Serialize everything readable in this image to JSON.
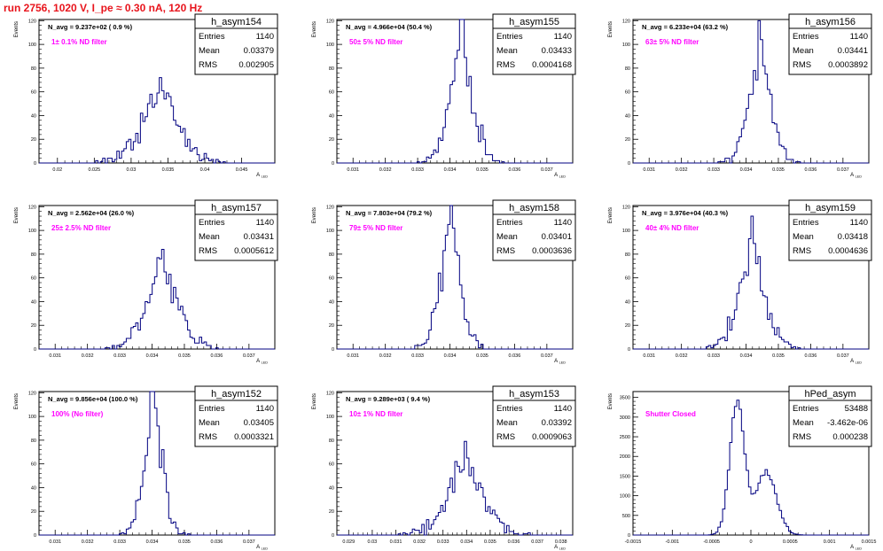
{
  "page": {
    "title": "run 2756,  1020 V, I_pe ≈ 0.30 nA, 120 Hz"
  },
  "style": {
    "hist_color": "#000080",
    "label_color": "#ff00ff",
    "title_color": "#e8141c"
  },
  "chart_data": [
    {
      "type": "bar",
      "name": "h_asym154",
      "ylabel": "Events",
      "xlabel": "A_LED",
      "navg": "N_avg = 9.237e+02 ( 0.9 %)",
      "filter": "1± 0.1% ND filter",
      "stats": {
        "entries": "1140",
        "mean": "0.03379",
        "rms": "0.002905"
      },
      "xlim": [
        0.0175,
        0.0495
      ],
      "ylim": [
        0,
        121
      ],
      "xticks": [
        0.02,
        0.025,
        0.03,
        0.035,
        0.04,
        0.045
      ],
      "xtick_labels": [
        "0.02",
        "0.025",
        "0.03",
        "0.035",
        "0.04",
        "0.045"
      ],
      "yticks": [
        0,
        20,
        40,
        60,
        80,
        100,
        120
      ],
      "hist": {
        "mean": 0.03379,
        "rms": 0.002905,
        "entries": 1140,
        "bins": 100,
        "seed": 154
      }
    },
    {
      "type": "bar",
      "name": "h_asym155",
      "ylabel": "Events",
      "xlabel": "A_LED",
      "navg": "N_avg = 4.966e+04 (50.4 %)",
      "filter": "50± 5% ND filter",
      "stats": {
        "entries": "1140",
        "mean": "0.03433",
        "rms": "0.0004168"
      },
      "xlim": [
        0.0305,
        0.0378
      ],
      "ylim": [
        0,
        121
      ],
      "xticks": [
        0.031,
        0.032,
        0.033,
        0.034,
        0.035,
        0.036,
        0.037
      ],
      "xtick_labels": [
        "0.031",
        "0.032",
        "0.033",
        "0.034",
        "0.035",
        "0.036",
        "0.037"
      ],
      "yticks": [
        0,
        20,
        40,
        60,
        80,
        100,
        120
      ],
      "hist": {
        "mean": 0.03433,
        "rms": 0.0004168,
        "entries": 1140,
        "bins": 100,
        "seed": 155
      }
    },
    {
      "type": "bar",
      "name": "h_asym156",
      "ylabel": "Events",
      "xlabel": "A_LED",
      "navg": "N_avg = 6.233e+04 (63.2 %)",
      "filter": "63± 5% ND filter",
      "stats": {
        "entries": "1140",
        "mean": "0.03441",
        "rms": "0.0003892"
      },
      "xlim": [
        0.0305,
        0.0378
      ],
      "ylim": [
        0,
        121
      ],
      "xticks": [
        0.031,
        0.032,
        0.033,
        0.034,
        0.035,
        0.036,
        0.037
      ],
      "xtick_labels": [
        "0.031",
        "0.032",
        "0.033",
        "0.034",
        "0.035",
        "0.036",
        "0.037"
      ],
      "yticks": [
        0,
        20,
        40,
        60,
        80,
        100,
        120
      ],
      "hist": {
        "mean": 0.03441,
        "rms": 0.0003892,
        "entries": 1140,
        "bins": 100,
        "seed": 156
      }
    },
    {
      "type": "bar",
      "name": "h_asym157",
      "ylabel": "Events",
      "xlabel": "A_LED",
      "navg": "N_avg = 2.562e+04 (26.0 %)",
      "filter": "25± 2.5% ND filter",
      "stats": {
        "entries": "1140",
        "mean": "0.03431",
        "rms": "0.0005612"
      },
      "xlim": [
        0.0305,
        0.0378
      ],
      "ylim": [
        0,
        121
      ],
      "xticks": [
        0.031,
        0.032,
        0.033,
        0.034,
        0.035,
        0.036,
        0.037
      ],
      "xtick_labels": [
        "0.031",
        "0.032",
        "0.033",
        "0.034",
        "0.035",
        "0.036",
        "0.037"
      ],
      "yticks": [
        0,
        20,
        40,
        60,
        80,
        100,
        120
      ],
      "hist": {
        "mean": 0.03431,
        "rms": 0.0005612,
        "entries": 1140,
        "bins": 100,
        "seed": 157
      }
    },
    {
      "type": "bar",
      "name": "h_asym158",
      "ylabel": "Events",
      "xlabel": "A_LED",
      "navg": "N_avg = 7.803e+04 (79.2 %)",
      "filter": "79± 5% ND filter",
      "stats": {
        "entries": "1140",
        "mean": "0.03401",
        "rms": "0.0003636"
      },
      "xlim": [
        0.0305,
        0.0378
      ],
      "ylim": [
        0,
        121
      ],
      "xticks": [
        0.031,
        0.032,
        0.033,
        0.034,
        0.035,
        0.036,
        0.037
      ],
      "xtick_labels": [
        "0.031",
        "0.032",
        "0.033",
        "0.034",
        "0.035",
        "0.036",
        "0.037"
      ],
      "yticks": [
        0,
        20,
        40,
        60,
        80,
        100,
        120
      ],
      "hist": {
        "mean": 0.03401,
        "rms": 0.0003636,
        "entries": 1140,
        "bins": 100,
        "seed": 158
      }
    },
    {
      "type": "bar",
      "name": "h_asym159",
      "ylabel": "Events",
      "xlabel": "A_LED",
      "navg": "N_avg = 3.976e+04 (40.3 %)",
      "filter": "40± 4% ND filter",
      "stats": {
        "entries": "1140",
        "mean": "0.03418",
        "rms": "0.0004636"
      },
      "xlim": [
        0.0305,
        0.0378
      ],
      "ylim": [
        0,
        121
      ],
      "xticks": [
        0.031,
        0.032,
        0.033,
        0.034,
        0.035,
        0.036,
        0.037
      ],
      "xtick_labels": [
        "0.031",
        "0.032",
        "0.033",
        "0.034",
        "0.035",
        "0.036",
        "0.037"
      ],
      "yticks": [
        0,
        20,
        40,
        60,
        80,
        100,
        120
      ],
      "hist": {
        "mean": 0.03418,
        "rms": 0.0004636,
        "entries": 1140,
        "bins": 100,
        "seed": 159
      }
    },
    {
      "type": "bar",
      "name": "h_asym152",
      "ylabel": "Events",
      "xlabel": "A_LED",
      "navg": "N_avg = 9.856e+04 (100.0 %)",
      "filter": "100% (No filter)",
      "stats": {
        "entries": "1140",
        "mean": "0.03405",
        "rms": "0.0003321"
      },
      "xlim": [
        0.0305,
        0.0378
      ],
      "ylim": [
        0,
        121
      ],
      "xticks": [
        0.031,
        0.032,
        0.033,
        0.034,
        0.035,
        0.036,
        0.037
      ],
      "xtick_labels": [
        "0.031",
        "0.032",
        "0.033",
        "0.034",
        "0.035",
        "0.036",
        "0.037"
      ],
      "yticks": [
        0,
        20,
        40,
        60,
        80,
        100,
        120
      ],
      "hist": {
        "mean": 0.03405,
        "rms": 0.0003321,
        "entries": 1140,
        "bins": 100,
        "seed": 152
      }
    },
    {
      "type": "bar",
      "name": "h_asym153",
      "ylabel": "Events",
      "xlabel": "A_LED",
      "navg": "N_avg = 9.289e+03 ( 9.4 %)",
      "filter": "10± 1% ND filter",
      "stats": {
        "entries": "1140",
        "mean": "0.03392",
        "rms": "0.0009063"
      },
      "xlim": [
        0.0285,
        0.0385
      ],
      "ylim": [
        0,
        121
      ],
      "xticks": [
        0.029,
        0.03,
        0.031,
        0.032,
        0.033,
        0.034,
        0.035,
        0.036,
        0.037,
        0.038
      ],
      "xtick_labels": [
        "0.029",
        "0.03",
        "0.031",
        "0.032",
        "0.033",
        "0.034",
        "0.035",
        "0.036",
        "0.037",
        "0.038"
      ],
      "yticks": [
        0,
        20,
        40,
        60,
        80,
        100,
        120
      ],
      "hist": {
        "mean": 0.03392,
        "rms": 0.0009063,
        "entries": 1140,
        "bins": 100,
        "seed": 153
      }
    },
    {
      "type": "bar",
      "name": "hPed_asym",
      "ylabel": "Events",
      "xlabel": "A_LED",
      "navg": "",
      "filter": "Shutter Closed",
      "stats": {
        "entries": "53488",
        "mean": "-3.462e-06",
        "rms": "0.000238"
      },
      "xlim": [
        -0.0015,
        0.0015
      ],
      "ylim": [
        0,
        3650
      ],
      "xticks": [
        -0.0015,
        -0.001,
        -0.0005,
        0,
        0.0005,
        0.001,
        0.0015
      ],
      "xtick_labels": [
        "-0.0015",
        "-0.001",
        "-0.0005",
        "0",
        "0.0005",
        "0.001",
        "0.0015"
      ],
      "yticks": [
        0,
        500,
        1000,
        1500,
        2000,
        2500,
        3000,
        3500
      ],
      "hist": {
        "bins": 100,
        "entries": 53488,
        "seed": 999,
        "components": [
          {
            "mean": -0.000175,
            "sigma": 9.5e-05,
            "peak": 3350
          },
          {
            "mean": 0.000195,
            "sigma": 0.00013,
            "peak": 1600
          }
        ]
      }
    }
  ]
}
